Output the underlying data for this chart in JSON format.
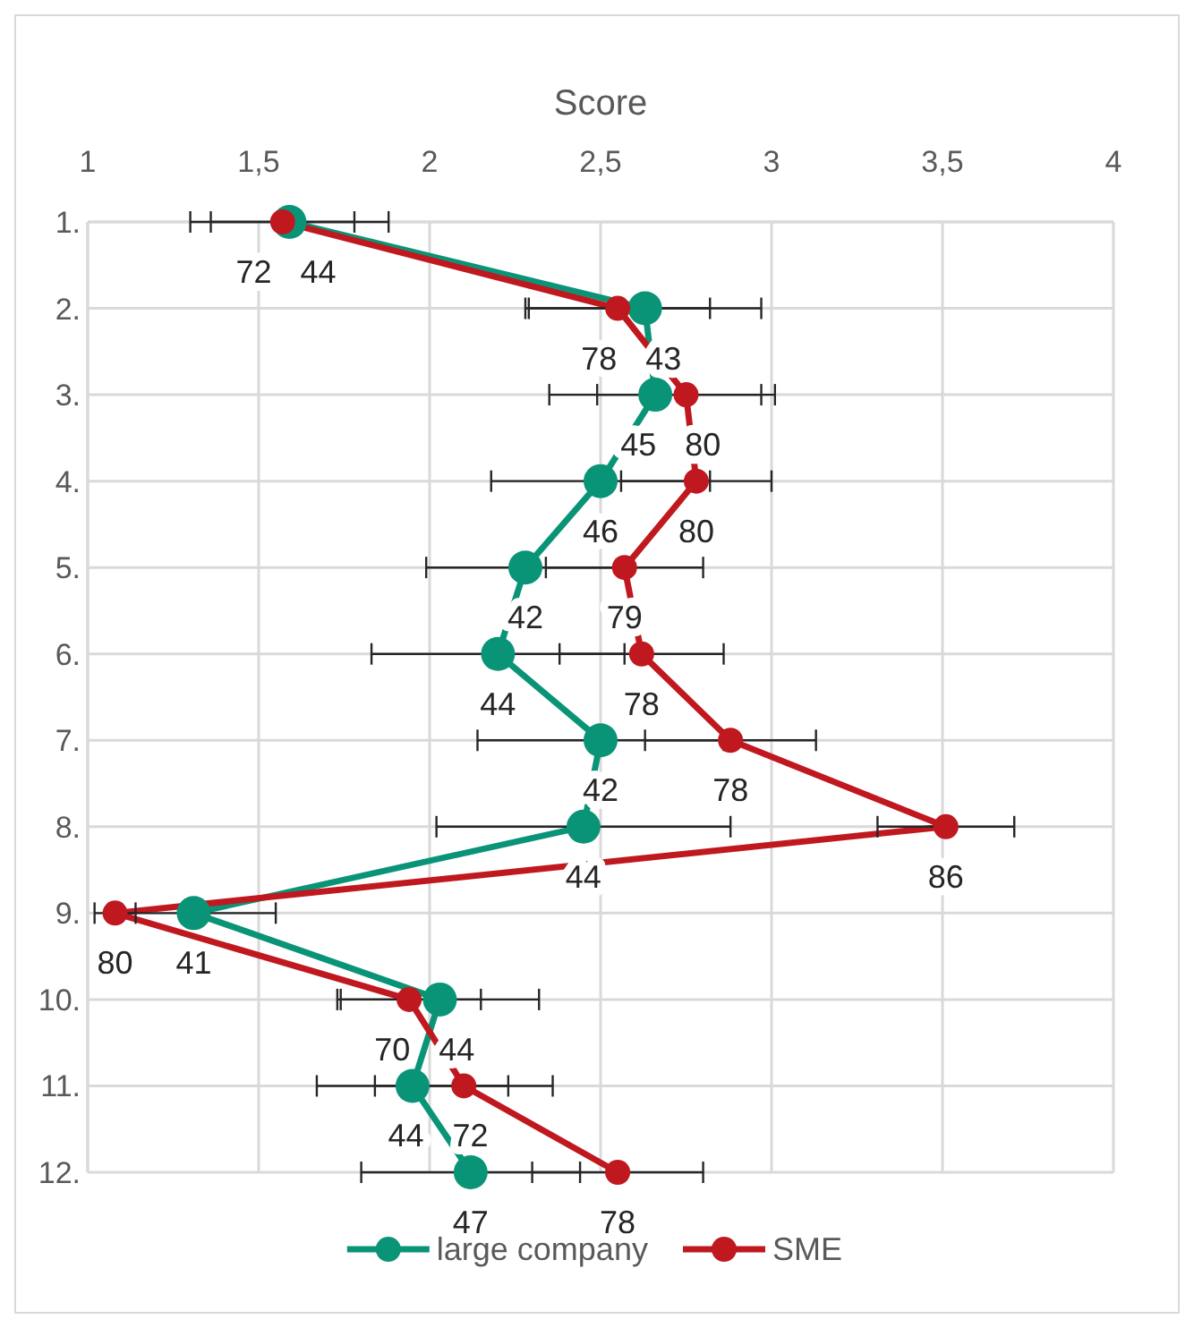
{
  "chart_data": {
    "type": "line",
    "orientation": "horizontal",
    "xlabel": "Score",
    "categories": [
      "1.",
      "2.",
      "3.",
      "4.",
      "5.",
      "6.",
      "7.",
      "8.",
      "9.",
      "10.",
      "11.",
      "12."
    ],
    "xlim": [
      1,
      4
    ],
    "xticks": [
      1,
      {
        "value": 1.5,
        "label": "1,5"
      },
      2,
      {
        "value": 2.5,
        "label": "2,5"
      },
      3,
      {
        "value": 3.5,
        "label": "3,5"
      },
      4
    ],
    "grid": true,
    "legend": "bottom",
    "marker": "circle",
    "line_style": "solid",
    "series": [
      {
        "name": "large company",
        "color": "#0a9477",
        "values": [
          1.59,
          2.63,
          2.66,
          2.5,
          2.28,
          2.2,
          2.5,
          2.45,
          1.31,
          2.03,
          1.95,
          2.12
        ],
        "errors": [
          0.29,
          0.34,
          0.31,
          0.32,
          0.29,
          0.37,
          0.36,
          0.43,
          0.24,
          0.29,
          0.28,
          0.32
        ]
      },
      {
        "name": "SME",
        "color": "#c0181f",
        "values": [
          1.57,
          2.55,
          2.75,
          2.78,
          2.57,
          2.62,
          2.88,
          3.51,
          1.08,
          1.94,
          2.1,
          2.55
        ],
        "errors": [
          0.21,
          0.27,
          0.26,
          0.22,
          0.23,
          0.24,
          0.25,
          0.2,
          0.06,
          0.21,
          0.26,
          0.25
        ]
      }
    ],
    "annotations": [
      {
        "text": "44",
        "x": 1.59,
        "y": "1."
      },
      {
        "text": "43",
        "x": 2.63,
        "y": "2."
      },
      {
        "text": "45",
        "x": 2.66,
        "y": "3."
      },
      {
        "text": "46",
        "x": 2.5,
        "y": "4."
      },
      {
        "text": "42",
        "x": 2.28,
        "y": "5."
      },
      {
        "text": "44",
        "x": 2.2,
        "y": "6."
      },
      {
        "text": "42",
        "x": 2.5,
        "y": "7."
      },
      {
        "text": "44",
        "x": 2.45,
        "y": "8."
      },
      {
        "text": "41",
        "x": 1.31,
        "y": "9."
      },
      {
        "text": "44",
        "x": 2.03,
        "y": "10."
      },
      {
        "text": "44",
        "x": 1.95,
        "y": "11."
      },
      {
        "text": "47",
        "x": 2.12,
        "y": "12."
      },
      {
        "text": "72",
        "x": 1.57,
        "y": "1."
      },
      {
        "text": "78",
        "x": 2.55,
        "y": "2."
      },
      {
        "text": "80",
        "x": 2.75,
        "y": "3."
      },
      {
        "text": "80",
        "x": 2.78,
        "y": "4."
      },
      {
        "text": "79",
        "x": 2.57,
        "y": "5."
      },
      {
        "text": "78",
        "x": 2.62,
        "y": "6."
      },
      {
        "text": "78",
        "x": 2.88,
        "y": "7."
      },
      {
        "text": "86",
        "x": 3.51,
        "y": "8."
      },
      {
        "text": "80",
        "x": 1.08,
        "y": "9."
      },
      {
        "text": "70",
        "x": 1.94,
        "y": "10."
      },
      {
        "text": "72",
        "x": 2.1,
        "y": "11."
      },
      {
        "text": "78",
        "x": 2.55,
        "y": "12."
      }
    ]
  }
}
